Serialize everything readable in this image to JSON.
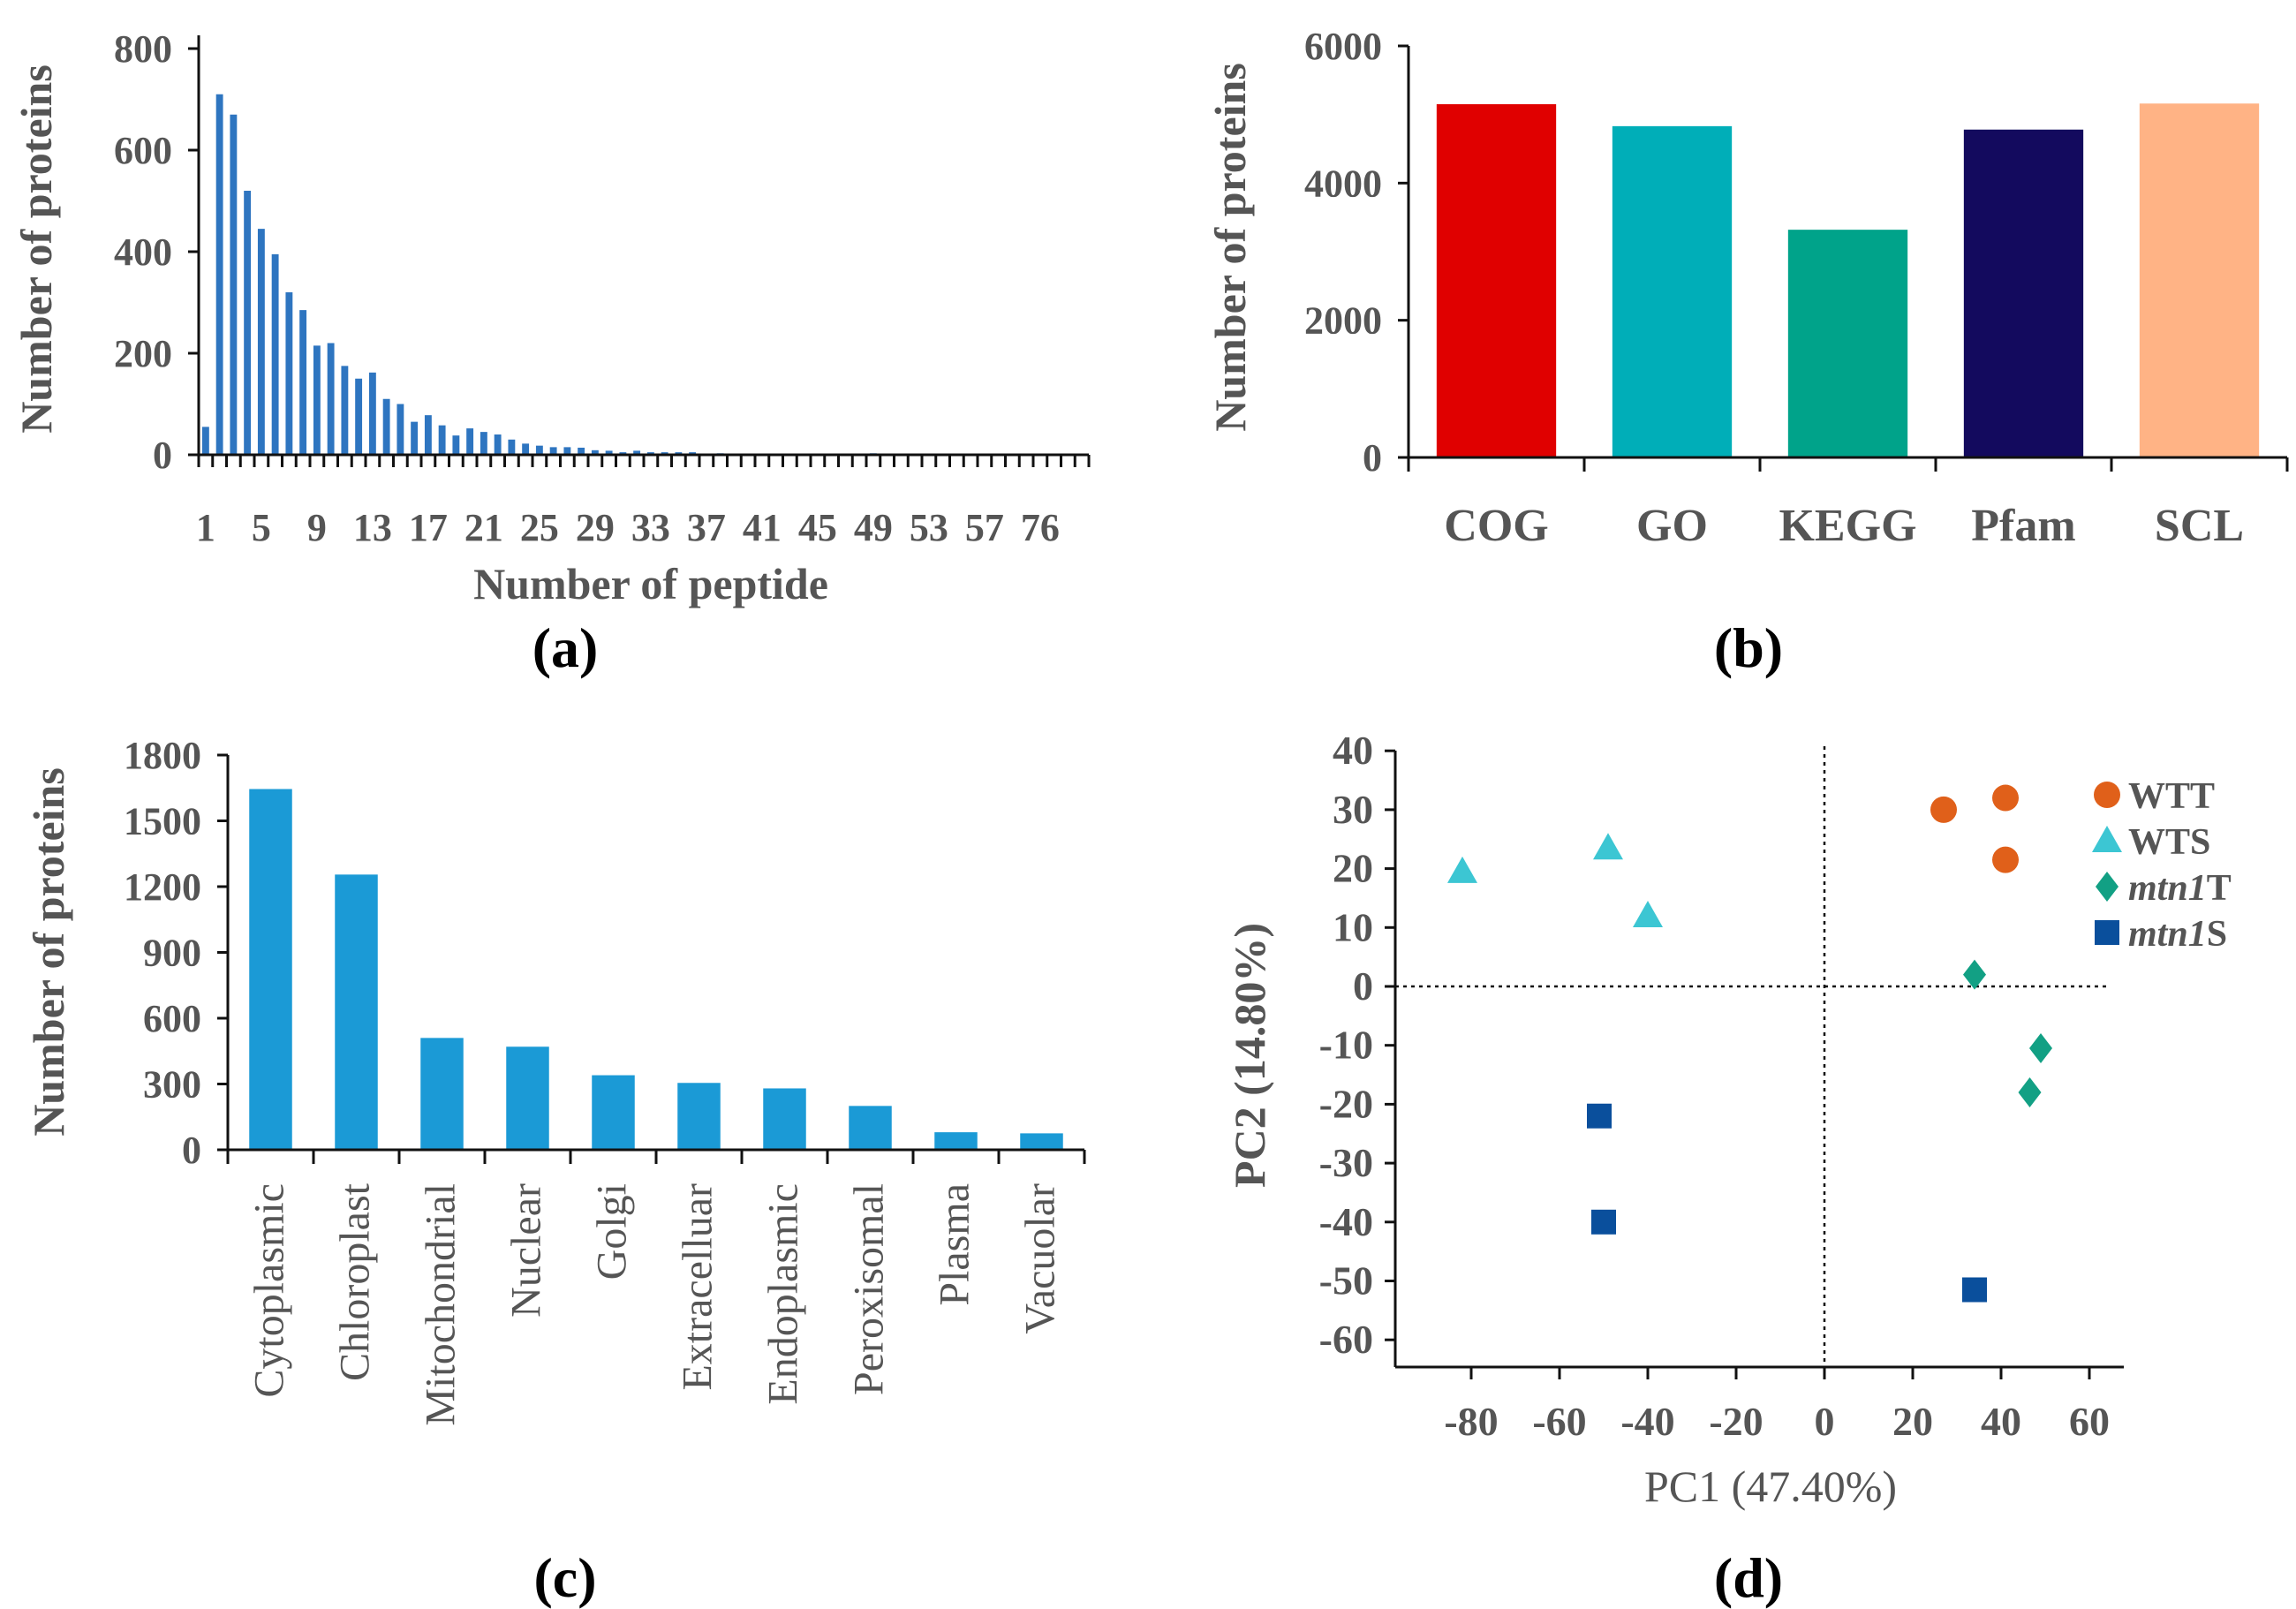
{
  "chart_data": [
    {
      "id": "a",
      "type": "bar",
      "panel_label": "(a)",
      "xlabel": "Number of peptide",
      "ylabel": "Number of proteins",
      "ylim": [
        0,
        800
      ],
      "yticks": [
        0,
        200,
        400,
        600,
        800
      ],
      "xtick_labels": [
        "1",
        "5",
        "9",
        "13",
        "17",
        "21",
        "25",
        "29",
        "33",
        "37",
        "41",
        "45",
        "49",
        "53",
        "57",
        "76"
      ],
      "color": "#2e75c0",
      "values": [
        55,
        710,
        670,
        520,
        445,
        395,
        320,
        285,
        215,
        220,
        175,
        150,
        162,
        110,
        100,
        65,
        78,
        58,
        38,
        52,
        45,
        40,
        30,
        22,
        18,
        15,
        15,
        14,
        9,
        8,
        5,
        8,
        5,
        5,
        5,
        5,
        1,
        3,
        1,
        1,
        1,
        2,
        1,
        1,
        2,
        1,
        1,
        1,
        3,
        1,
        1,
        1,
        1,
        1,
        1,
        1,
        1,
        1,
        1,
        1,
        1,
        1,
        1,
        1
      ]
    },
    {
      "id": "b",
      "type": "bar",
      "panel_label": "(b)",
      "xlabel": "",
      "ylabel": "Number of proteins",
      "ylim": [
        0,
        6000
      ],
      "yticks": [
        0,
        2000,
        4000,
        6000
      ],
      "categories": [
        "COG",
        "GO",
        "KEGG",
        "Pfam",
        "SCL"
      ],
      "values": [
        5150,
        4830,
        3320,
        4780,
        5160
      ],
      "colors": [
        "#e00000",
        "#00aeb8",
        "#00a38a",
        "#130a5e",
        "#ffb385"
      ]
    },
    {
      "id": "c",
      "type": "bar",
      "panel_label": "(c)",
      "xlabel": "",
      "ylabel": "Number of proteins",
      "ylim": [
        0,
        1800
      ],
      "yticks": [
        0,
        300,
        600,
        900,
        1200,
        1500,
        1800
      ],
      "categories": [
        "Cytoplasmic",
        "Chloroplast",
        "Mitochondrial",
        "Nuclear",
        "Golgi",
        "Extracelluar",
        "Endoplasmic",
        "Peroxisomal",
        "Plasma",
        "Vacuolar"
      ],
      "values": [
        1645,
        1255,
        510,
        470,
        340,
        305,
        280,
        200,
        80,
        75
      ],
      "color": "#1b9ad6"
    },
    {
      "id": "d",
      "type": "scatter",
      "panel_label": "(d)",
      "xlabel": "PC1 (47.40%)",
      "ylabel": "PC2 (14.80%)",
      "xlim": [
        -92,
        68
      ],
      "ylim": [
        -65,
        40
      ],
      "xticks": [
        -80,
        -60,
        -40,
        -20,
        0,
        20,
        40,
        60
      ],
      "yticks": [
        40,
        30,
        20,
        10,
        0,
        -10,
        -20,
        -30,
        -40,
        -50,
        -60
      ],
      "series": [
        {
          "name": "WTT",
          "name_italic": "",
          "name_rest": "WTT",
          "marker": "circle",
          "color": "#e0601a",
          "points": [
            [
              27,
              30
            ],
            [
              41,
              32
            ],
            [
              41,
              21.5
            ]
          ]
        },
        {
          "name": "WTS",
          "name_italic": "",
          "name_rest": "WTS",
          "marker": "triangle",
          "color": "#3cc6d3",
          "points": [
            [
              -82,
              19.5
            ],
            [
              -49,
              23.5
            ],
            [
              -40,
              12
            ]
          ]
        },
        {
          "name": "mtn1T",
          "name_italic": "mtn1",
          "name_rest": "T",
          "marker": "diamond",
          "color": "#12a084",
          "points": [
            [
              34,
              2
            ],
            [
              49,
              -10.5
            ],
            [
              46.5,
              -18
            ]
          ]
        },
        {
          "name": "mtn1S",
          "name_italic": "mtn1",
          "name_rest": "S",
          "marker": "square",
          "color": "#0a4f9c",
          "points": [
            [
              -51,
              -22
            ],
            [
              -50,
              -40
            ],
            [
              34,
              -51.5
            ]
          ]
        }
      ]
    }
  ]
}
